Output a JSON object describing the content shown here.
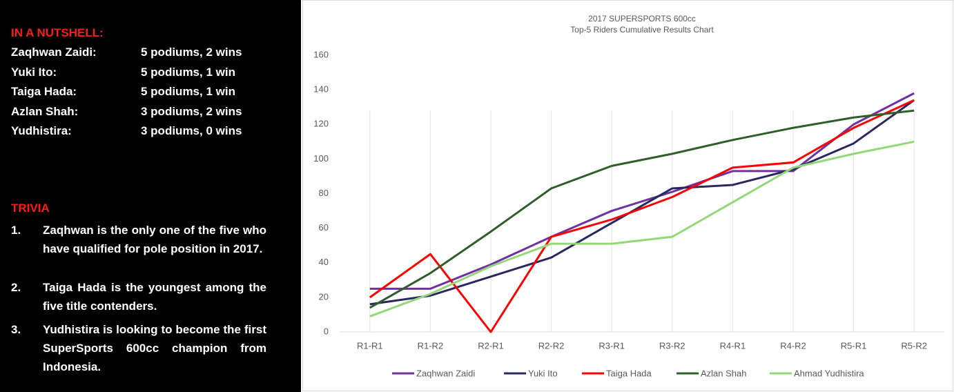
{
  "panel": {
    "nutshell_heading": "IN A NUTSHELL:",
    "rows": [
      {
        "name": "Zaqhwan Zaidi:",
        "value": "5 podiums, 2 wins"
      },
      {
        "name": "Yuki Ito:",
        "value": "5 podiums, 1 win"
      },
      {
        "name": "Taiga Hada:",
        "value": "5 podiums, 1 win"
      },
      {
        "name": "Azlan Shah:",
        "value": "3 podiums, 2 wins"
      },
      {
        "name": "Yudhistira:",
        "value": "3 podiums, 0 wins"
      }
    ],
    "trivia_heading": "TRIVIA",
    "trivia": [
      {
        "num": "1.",
        "text": "Zaqhwan is the only one of the five who have qualified for pole position in 2017."
      },
      {
        "num": "2.",
        "text": "Taiga Hada is the youngest among the five title contenders."
      },
      {
        "num": "3.",
        "text": "Yudhistira is looking to become the first SuperSports 600cc champion from Indonesia."
      }
    ]
  },
  "chart_data": {
    "type": "line",
    "title": "2017 SUPERSPORTS 600cc",
    "subtitle": "Top-5 Riders Cumulative Results Chart",
    "categories": [
      "R1-R1",
      "R1-R2",
      "R2-R1",
      "R2-R2",
      "R3-R1",
      "R3-R2",
      "R4-R1",
      "R4-R2",
      "R5-R1",
      "R5-R2"
    ],
    "series": [
      {
        "name": "Zaqhwan Zaidi",
        "color": "#7030a0",
        "values": [
          25,
          25,
          39,
          55,
          70,
          81,
          93,
          93,
          120,
          138
        ]
      },
      {
        "name": "Yuki Ito",
        "color": "#28285e",
        "values": [
          16,
          21,
          32,
          43,
          63,
          83,
          85,
          94,
          109,
          134
        ]
      },
      {
        "name": "Taiga Hada",
        "color": "#ff0000",
        "values": [
          20,
          45,
          0,
          55,
          65,
          78,
          95,
          98,
          118,
          134
        ]
      },
      {
        "name": "Azlan Shah",
        "color": "#2f5e2a",
        "values": [
          14,
          34,
          58,
          83,
          96,
          103,
          111,
          118,
          124,
          128
        ]
      },
      {
        "name": "Ahmad Yudhistira",
        "color": "#92d879",
        "values": [
          9,
          22,
          38,
          51,
          51,
          55,
          75,
          95,
          103,
          110
        ]
      }
    ],
    "ylim": [
      0,
      160
    ],
    "yticks": [
      0,
      20,
      40,
      60,
      80,
      100,
      120,
      140,
      160
    ],
    "legend": "bottom"
  }
}
